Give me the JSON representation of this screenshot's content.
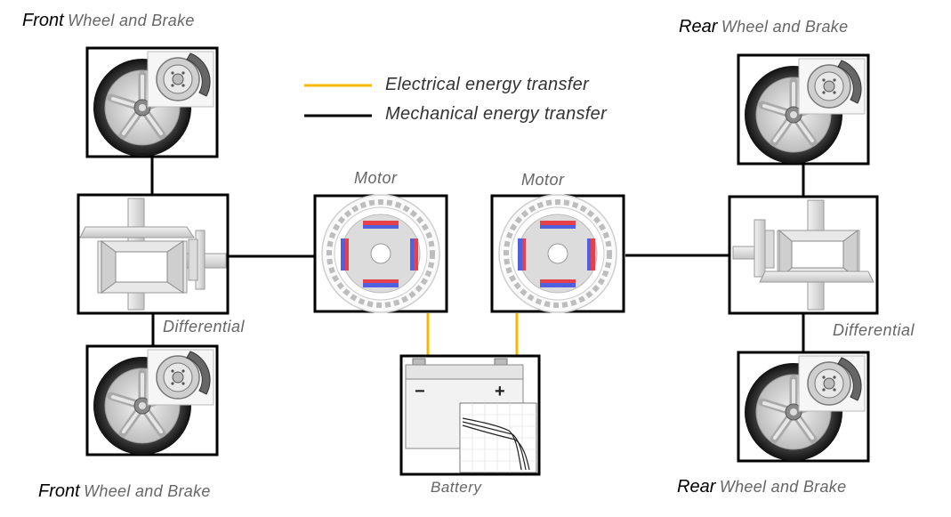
{
  "legend": {
    "electrical": {
      "label": "Electrical energy transfer",
      "color": "#F5B800"
    },
    "mechanical": {
      "label": "Mechanical energy transfer",
      "color": "#000000"
    }
  },
  "wheels": {
    "front_top": {
      "prefix": "Front",
      "label": "Wheel and Brake"
    },
    "front_bottom": {
      "prefix": "Front",
      "label": "Wheel and Brake"
    },
    "rear_top": {
      "prefix": "Rear",
      "label": "Wheel and Brake"
    },
    "rear_bottom": {
      "prefix": "Rear",
      "label": "Wheel and Brake"
    }
  },
  "differentials": {
    "left": "Differential",
    "right": "Differential"
  },
  "motors": {
    "left": "Motor",
    "right": "Motor"
  },
  "battery": {
    "label": "Battery",
    "minus": "−",
    "plus": "+"
  },
  "colors": {
    "magnet_red": "#E8404A",
    "magnet_blue": "#5060E0",
    "metal": "#D8D8D8"
  }
}
